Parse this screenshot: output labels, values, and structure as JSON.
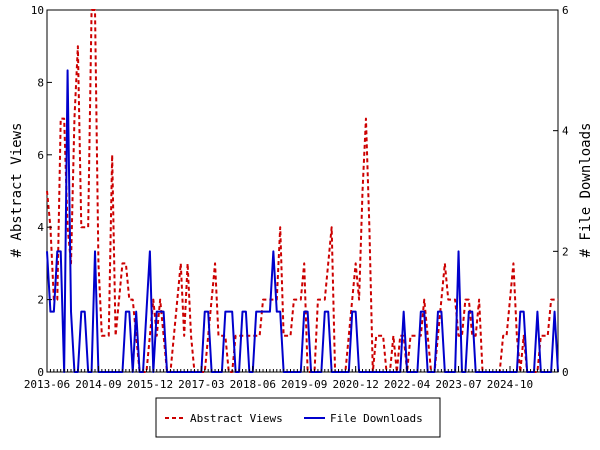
{
  "chart_data": {
    "type": "line",
    "x_tick_labels": [
      "2013-06",
      "2014-09",
      "2015-12",
      "2017-03",
      "2018-06",
      "2019-09",
      "2020-12",
      "2022-04",
      "2023-07",
      "2024-10"
    ],
    "y_left": {
      "label": "# Abstract Views",
      "ticks": [
        "0",
        "2",
        "4",
        "6",
        "8",
        "10"
      ],
      "ylim": [
        0,
        10
      ]
    },
    "y_right": {
      "label": "# File Downloads",
      "ticks": [
        "0",
        "2",
        "4",
        "6"
      ],
      "ylim": [
        0,
        6
      ]
    },
    "grid": false,
    "legend_position": "bottom-center",
    "n_points": 150,
    "series": [
      {
        "name": "Abstract Views",
        "axis": "left",
        "color": "#cc0000",
        "style": "dashed",
        "values": [
          5,
          4,
          2,
          2,
          7,
          7,
          4,
          3,
          7,
          9,
          4,
          4,
          4,
          10,
          10,
          3,
          1,
          1,
          1,
          6,
          1,
          2,
          3,
          3,
          2,
          2,
          1,
          0,
          0,
          0,
          1,
          2,
          1,
          2,
          1,
          0,
          0,
          1,
          2,
          3,
          1,
          3,
          1,
          0,
          0,
          0,
          0,
          1,
          2,
          3,
          1,
          1,
          1,
          0,
          0,
          1,
          1,
          1,
          1,
          1,
          1,
          1,
          1,
          2,
          2,
          2,
          2,
          2,
          4,
          1,
          1,
          1,
          2,
          2,
          2,
          3,
          0,
          0,
          0,
          2,
          2,
          2,
          3,
          4,
          0,
          0,
          0,
          0,
          1,
          2,
          3,
          2,
          5,
          7,
          4,
          0,
          1,
          1,
          1,
          0,
          0,
          1,
          0,
          1,
          1,
          0,
          1,
          1,
          1,
          1,
          2,
          1,
          0,
          0,
          1,
          2,
          3,
          2,
          2,
          2,
          1,
          1,
          2,
          2,
          1,
          1,
          2,
          0,
          0,
          0,
          0,
          0,
          0,
          1,
          1,
          2,
          3,
          1,
          0,
          1,
          0,
          0,
          0,
          0,
          1,
          1,
          1,
          2,
          2,
          2
        ]
      },
      {
        "name": "File Downloads",
        "axis": "right",
        "color": "#0000cc",
        "style": "solid",
        "values": [
          2,
          1,
          1,
          2,
          2,
          0,
          5,
          1,
          0,
          0,
          1,
          1,
          0,
          0,
          2,
          0,
          0,
          0,
          0,
          0,
          0,
          0,
          0,
          1,
          1,
          0,
          1,
          0,
          0,
          1,
          2,
          0,
          1,
          1,
          1,
          0,
          0,
          0,
          0,
          0,
          0,
          0,
          0,
          0,
          0,
          0,
          1,
          1,
          0,
          0,
          0,
          0,
          1,
          1,
          1,
          0,
          0,
          1,
          1,
          0,
          0,
          1,
          1,
          1,
          1,
          1,
          2,
          1,
          1,
          0,
          0,
          0,
          0,
          0,
          0,
          1,
          1,
          0,
          0,
          0,
          0,
          1,
          1,
          0,
          0,
          0,
          0,
          0,
          0,
          1,
          1,
          0,
          0,
          0,
          0,
          0,
          0,
          0,
          0,
          0,
          0,
          0,
          0,
          0,
          1,
          0,
          0,
          0,
          0,
          1,
          1,
          0,
          0,
          0,
          1,
          1,
          0,
          0,
          0,
          0,
          2,
          0,
          0,
          1,
          1,
          0,
          0,
          0,
          0,
          0,
          0,
          0,
          0,
          0,
          0,
          0,
          0,
          0,
          1,
          1,
          0,
          0,
          0,
          1,
          0,
          0,
          0,
          0,
          1,
          0
        ]
      }
    ]
  }
}
